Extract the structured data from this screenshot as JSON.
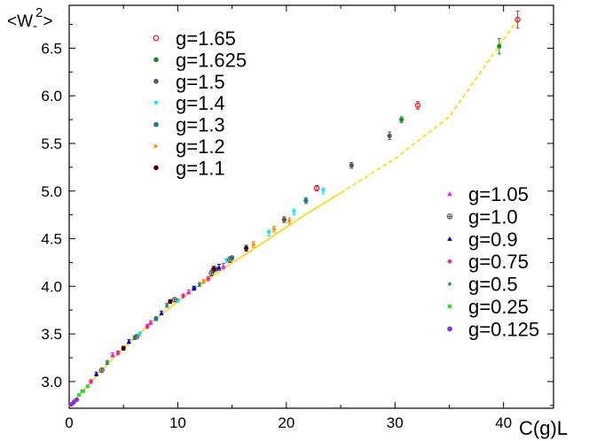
{
  "chart_data": {
    "type": "scatter",
    "title": "",
    "xlabel": "C(g)L",
    "ylabel": "<W_-^2>",
    "ylabel_parts": {
      "base": "<W",
      "sub": "-",
      "sup": "2",
      "close": ">"
    },
    "xlim": [
      0,
      44.6
    ],
    "ylim": [
      2.72,
      6.95
    ],
    "xticks": [
      0,
      10,
      20,
      30,
      40
    ],
    "xtick_labels": [
      "0",
      "10",
      "20",
      "30",
      "40"
    ],
    "yticks": [
      3.0,
      3.5,
      4.0,
      4.5,
      5.0,
      5.5,
      6.0,
      6.5
    ],
    "ytick_labels": [
      "3.0",
      "3.5",
      "4.0",
      "4.5",
      "5.0",
      "5.5",
      "6.0",
      "6.5"
    ],
    "grid": false,
    "fit_line": {
      "color": "#ffd700",
      "x": [
        0,
        1,
        2,
        3,
        4,
        5,
        6,
        7,
        8,
        10,
        12,
        14,
        16,
        18,
        20,
        22,
        25,
        30,
        35,
        41.3
      ],
      "y": [
        2.74,
        2.87,
        2.99,
        3.12,
        3.24,
        3.35,
        3.46,
        3.56,
        3.66,
        3.84,
        4.01,
        4.17,
        4.32,
        4.47,
        4.62,
        4.77,
        4.98,
        5.34,
        5.78,
        6.8
      ]
    },
    "series": [
      {
        "name": "g=1.65",
        "marker": "open-circle",
        "color": "#e8262a",
        "x": [
          22.8,
          32.1,
          41.3
        ],
        "y": [
          5.03,
          5.9,
          6.8
        ],
        "err": [
          0.03,
          0.04,
          0.09
        ]
      },
      {
        "name": "g=1.625",
        "marker": "circle",
        "color": "#1a8c1a",
        "x": [
          30.6,
          39.6
        ],
        "y": [
          5.75,
          6.52
        ],
        "err": [
          0.03,
          0.08
        ]
      },
      {
        "name": "g=1.5",
        "marker": "circle",
        "color": "#555555",
        "x": [
          13.5,
          19.8,
          26.0,
          29.5
        ],
        "y": [
          4.18,
          4.7,
          5.27,
          5.58
        ],
        "err": [
          0.02,
          0.03,
          0.03,
          0.04
        ]
      },
      {
        "name": "g=1.4",
        "marker": "triangle-down",
        "color": "#00e5ff",
        "x": [
          6.5,
          10.0,
          14.5,
          18.4,
          20.7,
          23.4
        ],
        "y": [
          3.5,
          3.85,
          4.27,
          4.56,
          4.78,
          5.0
        ],
        "err": [
          0.02,
          0.02,
          0.02,
          0.03,
          0.03,
          0.03
        ]
      },
      {
        "name": "g=1.3",
        "marker": "circle",
        "color": "#1b7a8c",
        "x": [
          8.0,
          11.5,
          15.0,
          21.8
        ],
        "y": [
          3.66,
          3.98,
          4.3,
          4.9
        ],
        "err": [
          0.02,
          0.02,
          0.02,
          0.03
        ]
      },
      {
        "name": "g=1.2",
        "marker": "triangle-right",
        "color": "#ff8c00",
        "x": [
          12.4,
          17.0,
          18.9,
          20.3
        ],
        "y": [
          4.05,
          4.44,
          4.6,
          4.69
        ],
        "err": [
          0.02,
          0.03,
          0.03,
          0.03
        ]
      },
      {
        "name": "g=1.1",
        "marker": "circle",
        "color": "#4a0000",
        "x": [
          5.0,
          9.3,
          13.3,
          16.3
        ],
        "y": [
          3.35,
          3.84,
          4.18,
          4.4
        ],
        "err": [
          0.02,
          0.02,
          0.03,
          0.03
        ]
      },
      {
        "name": "g=1.05",
        "marker": "triangle-up",
        "color": "#e61ee6",
        "x": [
          4.0,
          7.5,
          11.0,
          14.2
        ],
        "y": [
          3.28,
          3.62,
          3.94,
          4.21
        ],
        "err": [
          0.02,
          0.02,
          0.02,
          0.03
        ]
      },
      {
        "name": "g=1.0",
        "marker": "crossed-circle",
        "color": "#555555",
        "x": [
          3.0,
          6.2,
          9.7,
          13.1,
          14.8
        ],
        "y": [
          3.12,
          3.47,
          3.86,
          4.14,
          4.28
        ],
        "err": [
          0.02,
          0.02,
          0.02,
          0.03,
          0.03
        ]
      },
      {
        "name": "g=0.9",
        "marker": "triangle-up",
        "color": "#0000cc",
        "x": [
          2.5,
          5.5,
          8.5,
          11.5,
          13.8
        ],
        "y": [
          3.08,
          3.42,
          3.72,
          3.98,
          4.2
        ],
        "err": [
          0.02,
          0.02,
          0.02,
          0.02,
          0.03
        ]
      },
      {
        "name": "g=0.75",
        "marker": "diamond",
        "color": "#ff1493",
        "x": [
          2.0,
          4.5,
          7.2,
          10.5,
          12.8
        ],
        "y": [
          3.0,
          3.3,
          3.58,
          3.9,
          4.08
        ],
        "err": [
          0.02,
          0.02,
          0.02,
          0.02,
          0.02
        ]
      },
      {
        "name": "g=0.5",
        "marker": "star",
        "color": "#1b7a6c",
        "x": [
          1.2,
          3.5,
          6.0,
          9.0,
          12.0
        ],
        "y": [
          2.9,
          3.2,
          3.46,
          3.8,
          4.02
        ],
        "err": [
          0.01,
          0.02,
          0.02,
          0.02,
          0.02
        ]
      },
      {
        "name": "g=0.25",
        "marker": "square",
        "color": "#33dd33",
        "x": [
          0.5,
          0.9,
          1.3,
          1.7
        ],
        "y": [
          2.8,
          2.86,
          2.9,
          2.95
        ],
        "err": [
          0.01,
          0.01,
          0.01,
          0.01
        ]
      },
      {
        "name": "g=0.125",
        "marker": "circle",
        "color": "#8a2be2",
        "x": [
          0.2,
          0.4,
          0.7
        ],
        "y": [
          2.76,
          2.78,
          2.81
        ],
        "err": [
          0.01,
          0.01,
          0.01
        ]
      }
    ],
    "legend_groups": [
      {
        "position": "top-left",
        "series": [
          0,
          1,
          2,
          3,
          4,
          5,
          6
        ]
      },
      {
        "position": "right",
        "series": [
          7,
          8,
          9,
          10,
          11,
          12,
          13
        ]
      }
    ]
  }
}
